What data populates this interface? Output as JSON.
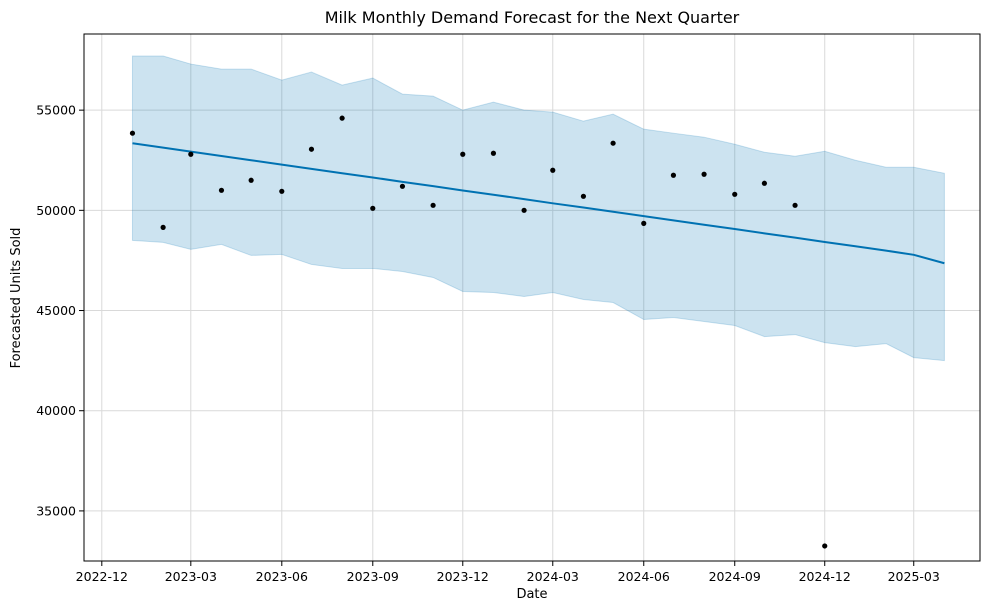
{
  "chart_data": {
    "type": "line",
    "title": "Milk Monthly Demand Forecast for the Next Quarter",
    "xlabel": "Date",
    "ylabel": "Forecasted Units Sold",
    "x_range": [
      "2022-11-13",
      "2025-05-07"
    ],
    "ylim": [
      32500,
      58800
    ],
    "grid": true,
    "x_ticks": [
      "2022-12-01",
      "2023-03-01",
      "2023-06-01",
      "2023-09-01",
      "2023-12-01",
      "2024-03-01",
      "2024-06-01",
      "2024-09-01",
      "2024-12-01",
      "2025-03-01"
    ],
    "x_tick_labels": [
      "2022-12",
      "2023-03",
      "2023-06",
      "2023-09",
      "2023-12",
      "2024-03",
      "2024-06",
      "2024-09",
      "2024-12",
      "2025-03"
    ],
    "y_ticks": [
      35000,
      40000,
      45000,
      50000,
      55000
    ],
    "y_tick_labels": [
      "35000",
      "40000",
      "45000",
      "50000",
      "55000"
    ],
    "colors": {
      "forecast_line": "#0072B2",
      "interval_fill": "#0072B2",
      "observed_points": "#000000",
      "grid": "#d9d9d9"
    },
    "observed": {
      "x": [
        "2023-01-01",
        "2023-02-01",
        "2023-03-01",
        "2023-04-01",
        "2023-05-01",
        "2023-06-01",
        "2023-07-01",
        "2023-08-01",
        "2023-09-01",
        "2023-10-01",
        "2023-11-01",
        "2023-12-01",
        "2024-01-01",
        "2024-02-01",
        "2024-03-01",
        "2024-04-01",
        "2024-05-01",
        "2024-06-01",
        "2024-07-01",
        "2024-08-01",
        "2024-09-01",
        "2024-10-01",
        "2024-11-01",
        "2024-12-01"
      ],
      "y": [
        53850,
        49150,
        52800,
        51000,
        51500,
        50950,
        53050,
        54600,
        50100,
        51200,
        50250,
        52800,
        52850,
        50000,
        52000,
        50700,
        53350,
        49350,
        51750,
        51800,
        50800,
        51350,
        50250,
        33250
      ]
    },
    "forecast": {
      "x": [
        "2023-01-01",
        "2023-02-01",
        "2023-03-01",
        "2023-04-01",
        "2023-05-01",
        "2023-06-01",
        "2023-07-01",
        "2023-08-01",
        "2023-09-01",
        "2023-10-01",
        "2023-11-01",
        "2023-12-01",
        "2024-01-01",
        "2024-02-01",
        "2024-03-01",
        "2024-04-01",
        "2024-05-01",
        "2024-06-01",
        "2024-07-01",
        "2024-08-01",
        "2024-09-01",
        "2024-10-01",
        "2024-11-01",
        "2024-12-01",
        "2025-01-01",
        "2025-02-01",
        "2025-03-01",
        "2025-04-01"
      ],
      "yhat": [
        53350,
        53130,
        52930,
        52710,
        52500,
        52280,
        52070,
        51850,
        51640,
        51420,
        51210,
        50990,
        50780,
        50560,
        50350,
        50140,
        49930,
        49710,
        49500,
        49280,
        49070,
        48850,
        48640,
        48420,
        48210,
        47990,
        47780,
        47360
      ],
      "yhat_lower": [
        48500,
        48400,
        48050,
        48300,
        47750,
        47800,
        47300,
        47100,
        47100,
        46950,
        46650,
        45950,
        45900,
        45700,
        45900,
        45550,
        45400,
        44550,
        44650,
        44450,
        44250,
        43700,
        43800,
        43400,
        43200,
        43350,
        42650,
        42500
      ],
      "yhat_upper": [
        57700,
        57700,
        57300,
        57050,
        57050,
        56500,
        56900,
        56250,
        56600,
        55800,
        55700,
        55000,
        55400,
        55000,
        54900,
        54450,
        54800,
        54050,
        53850,
        53650,
        53300,
        52900,
        52700,
        52950,
        52500,
        52150,
        52150,
        51850
      ]
    }
  }
}
